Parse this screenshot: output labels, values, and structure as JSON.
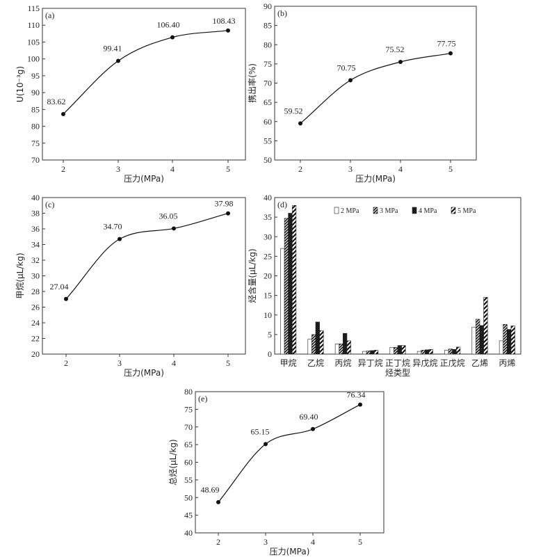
{
  "chart_data": [
    {
      "type": "line",
      "panel_label": "(a)",
      "x": [
        2,
        3,
        4,
        5
      ],
      "y": [
        83.62,
        99.41,
        106.4,
        108.43
      ],
      "data_labels": [
        "83.62",
        "99.41",
        "106.40",
        "108.43"
      ],
      "xlabel": "压力(MPa)",
      "ylabel": "U(10⁻³g)",
      "xticks": [
        "2",
        "3",
        "4",
        "5"
      ],
      "ylim": [
        70,
        115
      ],
      "yticks": [
        70,
        75,
        80,
        85,
        90,
        95,
        100,
        105,
        110,
        115
      ]
    },
    {
      "type": "line",
      "panel_label": "(b)",
      "x": [
        2,
        3,
        4,
        5
      ],
      "y": [
        59.52,
        70.75,
        75.52,
        77.75
      ],
      "data_labels": [
        "59.52",
        "70.75",
        "75.52",
        "77.75"
      ],
      "xlabel": "压力(MPa)",
      "ylabel": "携出率(%)",
      "xticks": [
        "2",
        "3",
        "4",
        "5"
      ],
      "ylim": [
        50,
        90
      ],
      "yticks": [
        50,
        55,
        60,
        65,
        70,
        75,
        80,
        85,
        90
      ]
    },
    {
      "type": "line",
      "panel_label": "(c)",
      "x": [
        2,
        3,
        4,
        5
      ],
      "y": [
        27.04,
        34.7,
        36.05,
        37.98
      ],
      "data_labels": [
        "27.04",
        "34.70",
        "36.05",
        "37.98"
      ],
      "xlabel": "压力(MPa)",
      "ylabel": "甲烷(μL/kg)",
      "xticks": [
        "2",
        "3",
        "4",
        "5"
      ],
      "ylim": [
        20,
        40
      ],
      "yticks": [
        20,
        22,
        24,
        26,
        28,
        30,
        32,
        34,
        36,
        38,
        40
      ]
    },
    {
      "type": "bar",
      "panel_label": "(d)",
      "categories": [
        "甲烷",
        "乙烷",
        "丙烷",
        "异丁烷",
        "正丁烷",
        "异戊烷",
        "正戊烷",
        "乙烯",
        "丙烯"
      ],
      "series": [
        {
          "name": "2 MPa",
          "values": [
            27.0,
            3.8,
            2.6,
            0.7,
            1.7,
            0.7,
            1.0,
            6.9,
            3.4
          ]
        },
        {
          "name": "3 MPa",
          "values": [
            34.7,
            5.0,
            2.6,
            0.8,
            1.7,
            1.0,
            1.3,
            8.9,
            7.6
          ]
        },
        {
          "name": "4 MPa",
          "values": [
            36.0,
            8.2,
            5.3,
            0.9,
            2.2,
            1.1,
            1.2,
            7.3,
            6.3
          ]
        },
        {
          "name": "5 MPa",
          "values": [
            38.0,
            6.0,
            3.4,
            1.0,
            2.2,
            1.2,
            1.8,
            14.5,
            7.2
          ]
        }
      ],
      "xlabel": "烃类型",
      "ylabel": "烃含量(μL/kg)",
      "ylim": [
        0,
        40
      ],
      "yticks": [
        0,
        5,
        10,
        15,
        20,
        25,
        30,
        35,
        40
      ],
      "legend": "top-right"
    },
    {
      "type": "line",
      "panel_label": "(e)",
      "x": [
        2,
        3,
        4,
        5
      ],
      "y": [
        48.69,
        65.15,
        69.4,
        76.34
      ],
      "data_labels": [
        "48.69",
        "65.15",
        "69.40",
        "76.34"
      ],
      "xlabel": "压力(MPa)",
      "ylabel": "总烃(μL/kg)",
      "xticks": [
        "2",
        "3",
        "4",
        "5"
      ],
      "ylim": [
        40,
        80
      ],
      "yticks": [
        40,
        45,
        50,
        55,
        60,
        65,
        70,
        75,
        80
      ]
    }
  ]
}
